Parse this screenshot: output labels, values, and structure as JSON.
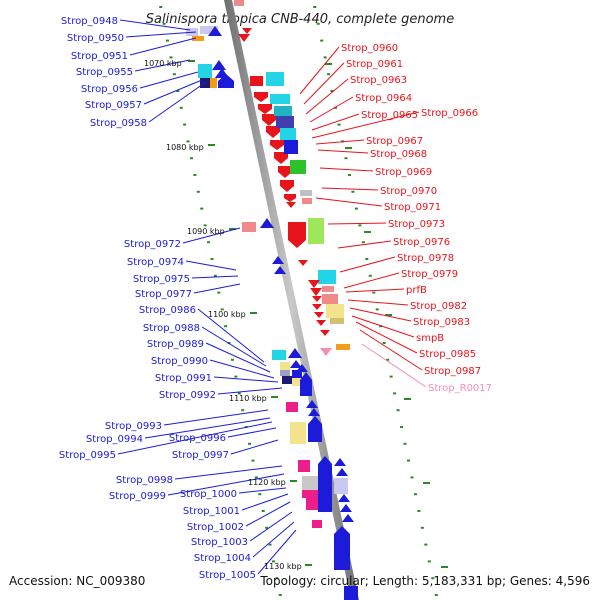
{
  "title": "Salinispora tropica CNB-440, complete genome",
  "footer": {
    "accession": "Accession: NC_009380",
    "summary": "Topology: circular; Length: 5,183,331 bp; Genes: 4,596"
  },
  "colors": {
    "forward": "#e8141b",
    "reverse": "#1b1bd9",
    "rna": "#f28fb6",
    "backbone": "#909090",
    "tick": "#2a8a2a"
  },
  "ticks": [
    "1070 kbp",
    "1080 kbp",
    "1090 kbp",
    "1100 kbp",
    "1110 kbp",
    "1120 kbp",
    "1130 kbp"
  ],
  "left_labels": [
    "Strop_0948",
    "Strop_0950",
    "Strop_0951",
    "Strop_0955",
    "Strop_0956",
    "Strop_0957",
    "Strop_0958",
    "Strop_0972",
    "Strop_0974",
    "Strop_0975",
    "Strop_0977",
    "Strop_0986",
    "Strop_0988",
    "Strop_0989",
    "Strop_0990",
    "Strop_0991",
    "Strop_0992",
    "Strop_0993",
    "Strop_0994",
    "Strop_0996",
    "Strop_0995",
    "Strop_0997",
    "Strop_0998",
    "Strop_0999",
    "Strop_1000",
    "Strop_1001",
    "Strop_1002",
    "Strop_1003",
    "Strop_1004",
    "Strop_1005"
  ],
  "right_labels": [
    "Strop_0960",
    "Strop_0961",
    "Strop_0963",
    "Strop_0964",
    "Strop_0965",
    "Strop_0966",
    "Strop_0967",
    "Strop_0968",
    "Strop_0969",
    "Strop_0970",
    "Strop_0971",
    "Strop_0973",
    "Strop_0976",
    "Strop_0978",
    "Strop_0979",
    "prfB",
    "Strop_0982",
    "Strop_0983",
    "smpB",
    "Strop_0985",
    "Strop_0987",
    "Strop_R0017"
  ]
}
